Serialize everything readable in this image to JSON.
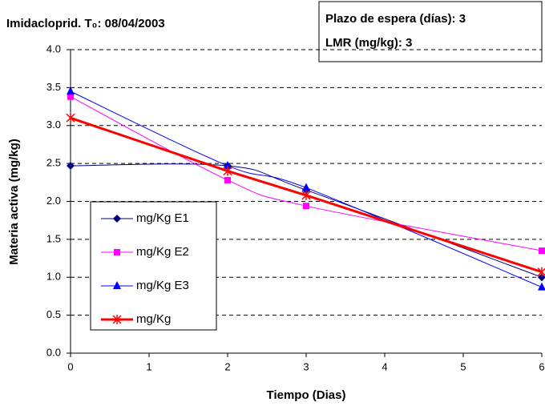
{
  "chart_data": {
    "type": "line",
    "title": "Imidacloprid. T₀: 08/04/2003",
    "annotations": [
      "Plazo de espera (días): 3",
      "LMR (mg/kg): 3"
    ],
    "x_label": "Tiempo (Dias)",
    "y_label": "Materia activa (mg/kg)",
    "x": [
      0,
      2,
      3,
      6
    ],
    "xlim": [
      0,
      6
    ],
    "xticks": [
      0,
      1,
      2,
      3,
      4,
      5,
      6
    ],
    "ylim": [
      0,
      4
    ],
    "yticks": [
      {
        "value": 0,
        "label": "0.0"
      },
      {
        "value": 0.5,
        "label": "0.5"
      },
      {
        "value": 1,
        "label": "1.0"
      },
      {
        "value": 1.5,
        "label": "1.5"
      },
      {
        "value": 2,
        "label": "2.0"
      },
      {
        "value": 2.5,
        "label": "2.5"
      },
      {
        "value": 3,
        "label": "3.0"
      },
      {
        "value": 3.5,
        "label": "3.5"
      },
      {
        "value": 4,
        "label": "4.0"
      }
    ],
    "grid": true,
    "series": [
      {
        "name": "mg/Kg E1",
        "color": "#000080",
        "marker": "diamond",
        "smooth": true,
        "values": [
          2.47,
          2.47,
          2.15,
          1.0
        ]
      },
      {
        "name": "mg/Kg E2",
        "color": "#ff00ff",
        "marker": "square",
        "smooth": true,
        "values": [
          3.38,
          2.28,
          1.94,
          1.35
        ]
      },
      {
        "name": "mg/Kg E3",
        "color": "#0000ff",
        "marker": "triangle",
        "smooth": true,
        "values": [
          3.45,
          2.47,
          2.18,
          0.87
        ]
      },
      {
        "name": "mg/Kg",
        "color": "#ff0000",
        "marker": "asterisk",
        "smooth": false,
        "width": 3,
        "values": [
          3.1,
          2.4,
          2.08,
          1.07
        ]
      }
    ]
  }
}
